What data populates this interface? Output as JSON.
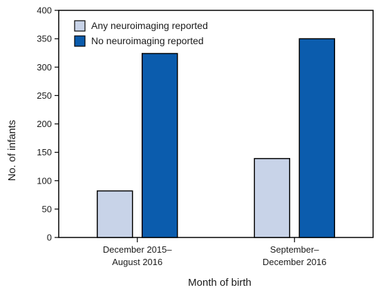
{
  "chart_data": {
    "type": "bar",
    "categories": [
      [
        "December 2015–",
        "August 2016"
      ],
      [
        "September–",
        "December 2016"
      ]
    ],
    "series": [
      {
        "name": "Any neuroimaging reported",
        "values": [
          82,
          139
        ],
        "color": "#c8d3e8"
      },
      {
        "name": "No neuroimaging reported",
        "values": [
          324,
          350
        ],
        "color": "#0b5cad"
      }
    ],
    "xlabel": "Month of birth",
    "ylabel": "No. of infants",
    "ylim": [
      0,
      400
    ],
    "yticks": [
      0,
      50,
      100,
      150,
      200,
      250,
      300,
      350,
      400
    ],
    "grid": false,
    "legend_position": "top-left"
  }
}
